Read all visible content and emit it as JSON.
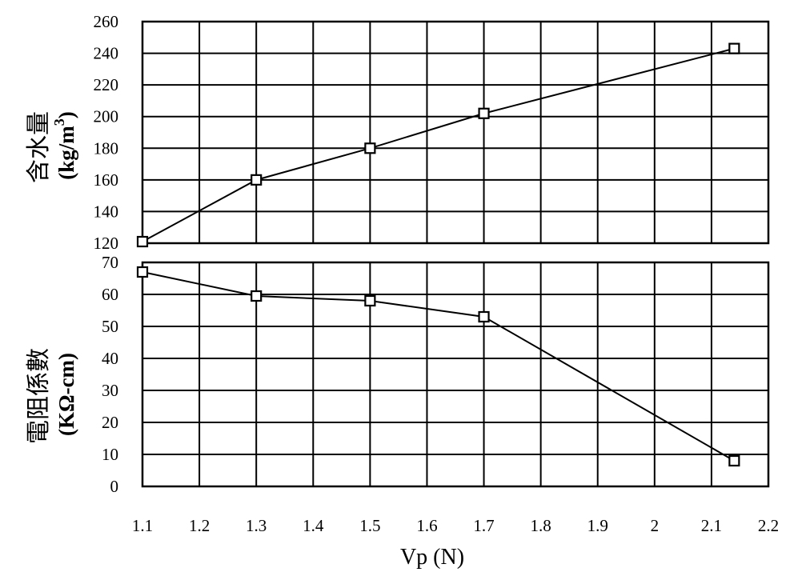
{
  "chart_data": [
    {
      "type": "line",
      "ylabel_main": "含水量",
      "ylabel_unit_prefix": "(kg/m",
      "ylabel_unit_sup": "3",
      "ylabel_unit_suffix": ")",
      "xlim": [
        1.1,
        2.2
      ],
      "ylim": [
        120,
        260
      ],
      "yticks": [
        "120",
        "140",
        "160",
        "180",
        "200",
        "220",
        "240",
        "260"
      ],
      "grid": true,
      "series": [
        {
          "x": [
            1.1,
            1.3,
            1.5,
            1.7,
            2.14
          ],
          "y": [
            121,
            160,
            180,
            202,
            243
          ]
        }
      ]
    },
    {
      "type": "line",
      "ylabel_main": "電阻係數",
      "ylabel_unit": "(KΩ-cm)",
      "xlabel": "Vp (N)",
      "xlim": [
        1.1,
        2.2
      ],
      "ylim": [
        0,
        70
      ],
      "yticks": [
        "0",
        "10",
        "20",
        "30",
        "40",
        "50",
        "60",
        "70"
      ],
      "xticks": [
        "1.1",
        "1.2",
        "1.3",
        "1.4",
        "1.5",
        "1.6",
        "1.7",
        "1.8",
        "1.9",
        "2",
        "2.1",
        "2.2"
      ],
      "grid": true,
      "series": [
        {
          "x": [
            1.1,
            1.3,
            1.5,
            1.7,
            2.14
          ],
          "y": [
            67,
            59.5,
            58,
            53,
            8
          ]
        }
      ]
    }
  ]
}
